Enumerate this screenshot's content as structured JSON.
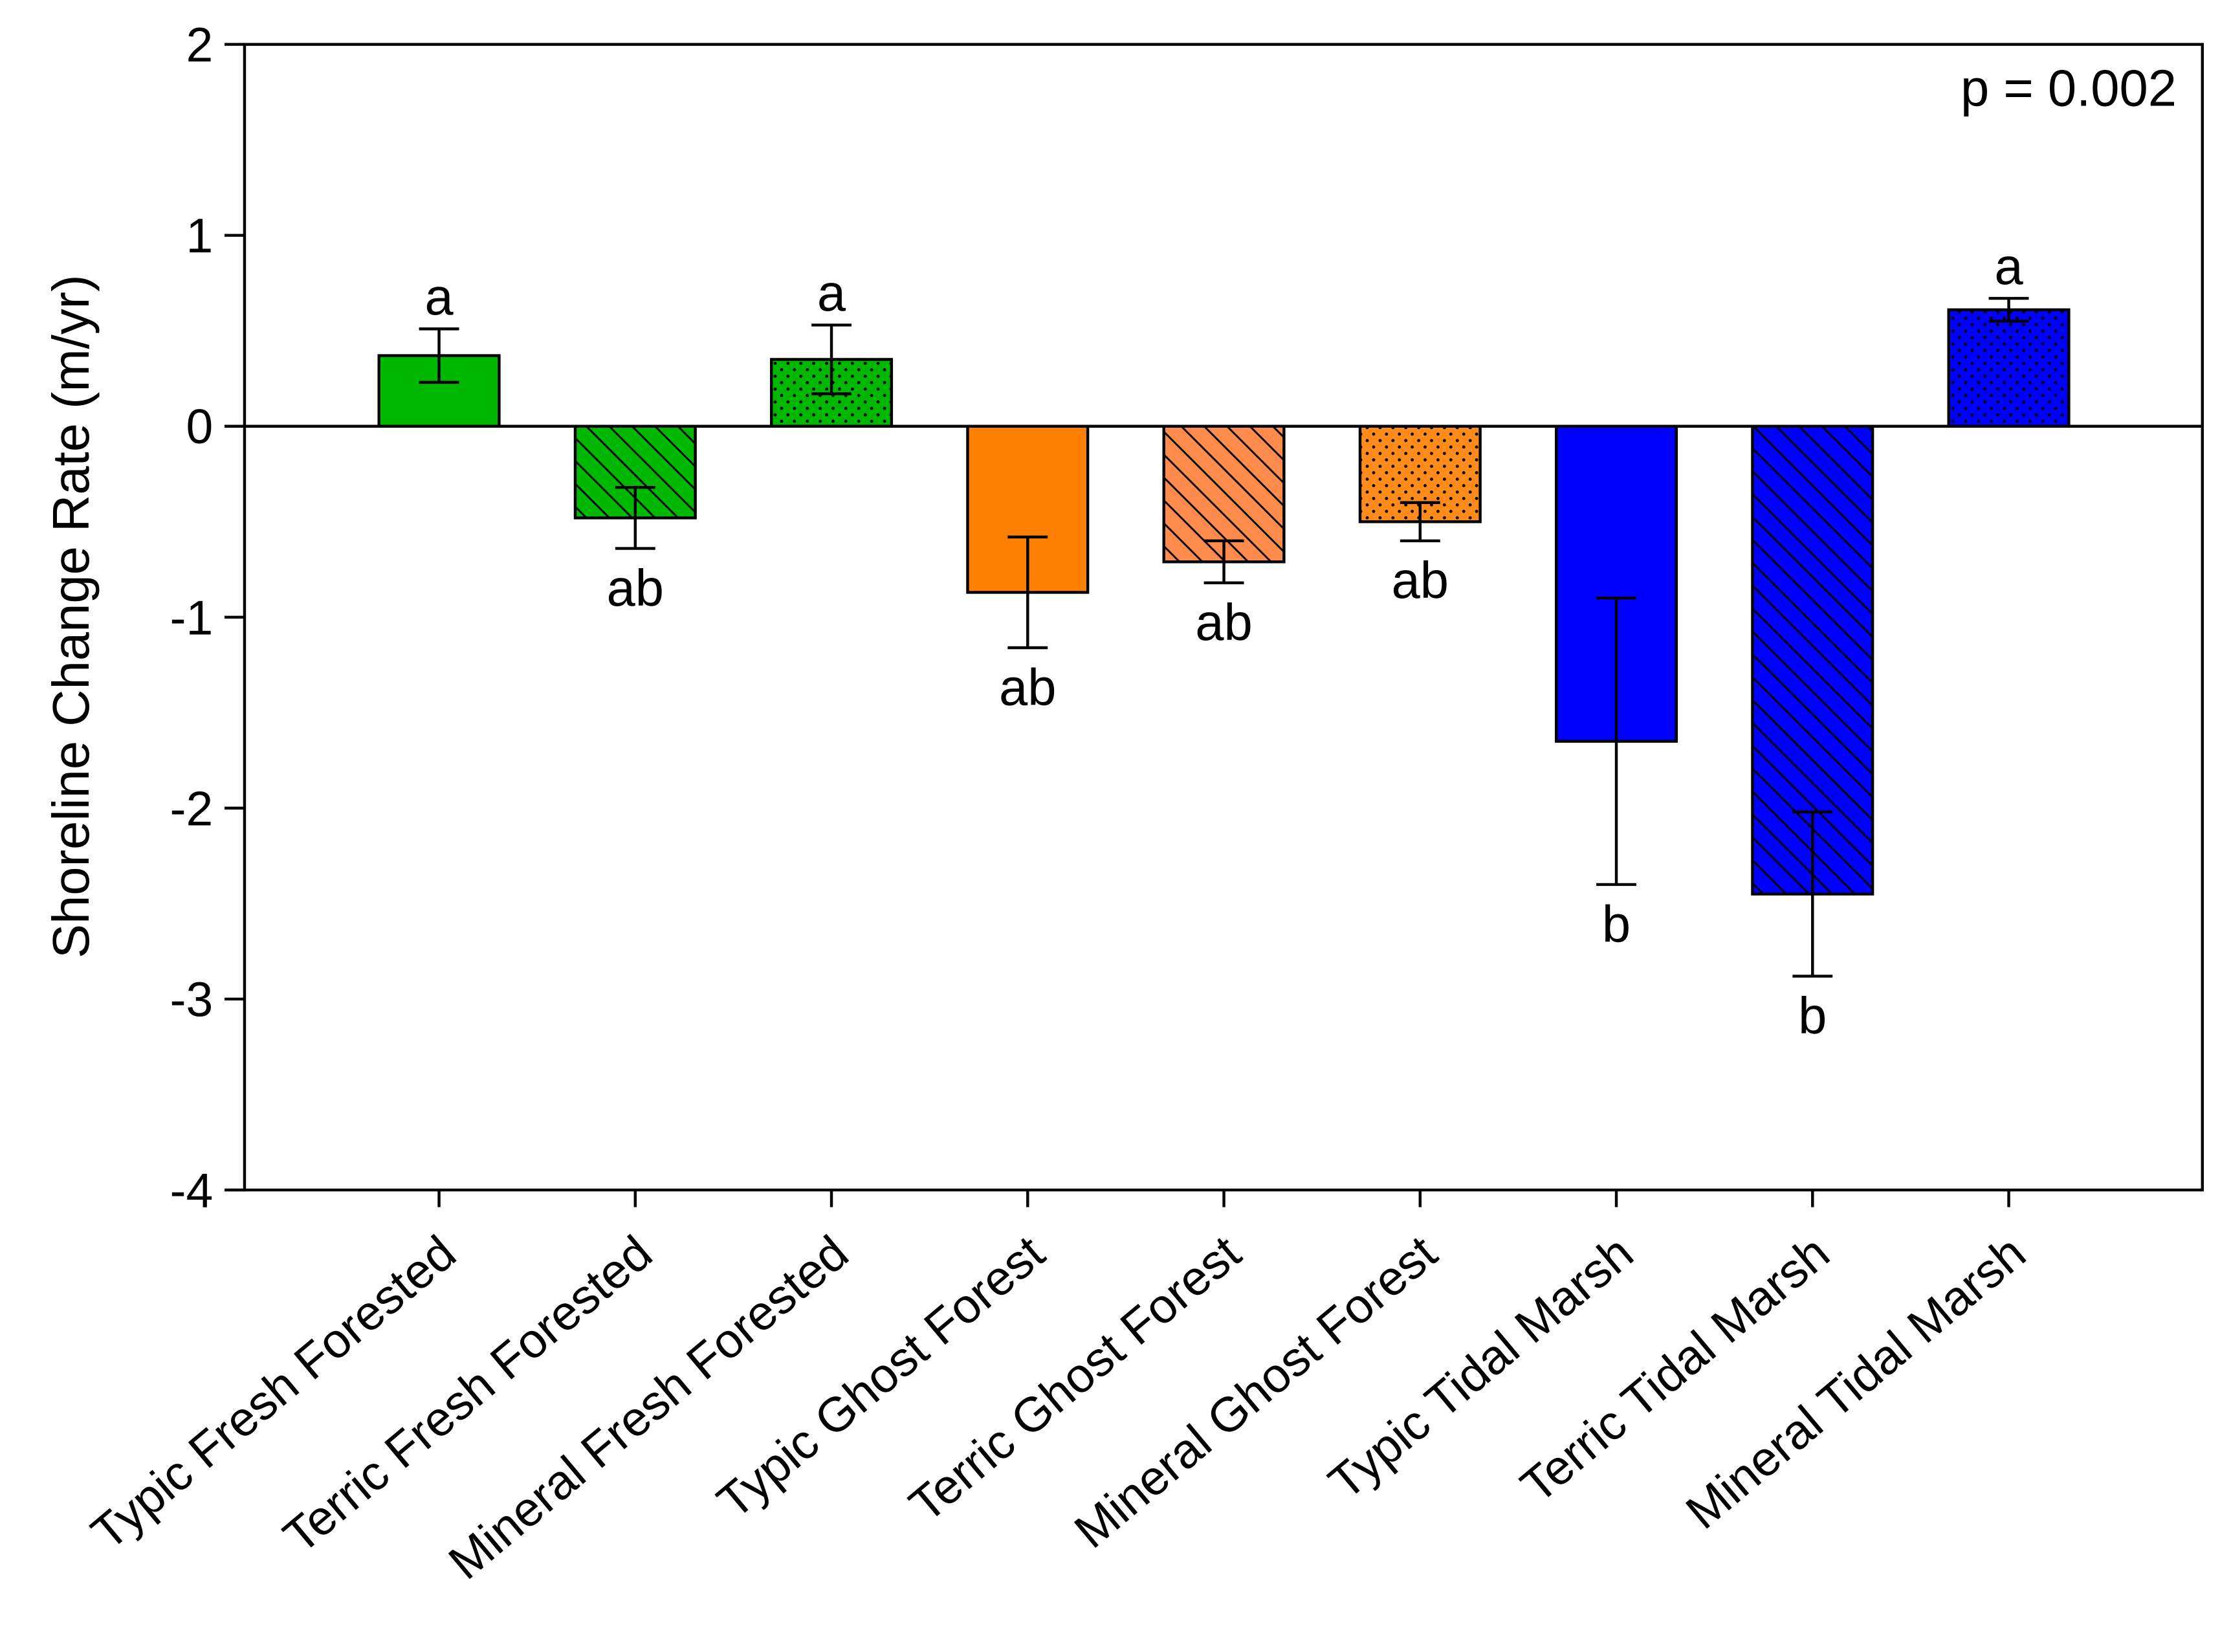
{
  "chart_data": {
    "type": "bar",
    "y_label": "Shoreline Change Rate (m/yr)",
    "annotation": "p = 0.002",
    "categories": [
      "Typic Fresh Forested",
      "Terric Fresh Forested",
      "Mineral Fresh Forested",
      "Typic Ghost Forest",
      "Terric Ghost Forest",
      "Mineral Ghost Forest",
      "Typic Tidal Marsh",
      "Terric Tidal Marsh",
      "Mineral Tidal Marsh"
    ],
    "values": [
      0.37,
      -0.48,
      0.35,
      -0.87,
      -0.71,
      -0.5,
      -1.65,
      -2.45,
      0.61
    ],
    "errors": [
      0.14,
      0.16,
      0.18,
      0.29,
      0.11,
      0.1,
      0.75,
      0.43,
      0.06
    ],
    "letters": [
      "a",
      "ab",
      "a",
      "ab",
      "ab",
      "ab",
      "b",
      "b",
      "a"
    ],
    "colors": [
      "#00b800",
      "#00b800",
      "#00b800",
      "#ff8000",
      "#ff8c4c",
      "#ff8c1a",
      "#0000ff",
      "#0000ff",
      "#0000ff"
    ],
    "patterns": [
      "solid",
      "hatch",
      "dots",
      "solid",
      "hatch",
      "dots",
      "solid",
      "hatch",
      "dots"
    ],
    "ylim": [
      -4,
      2
    ],
    "yticks": [
      -4,
      -3,
      -2,
      -1,
      0,
      1,
      2
    ]
  }
}
